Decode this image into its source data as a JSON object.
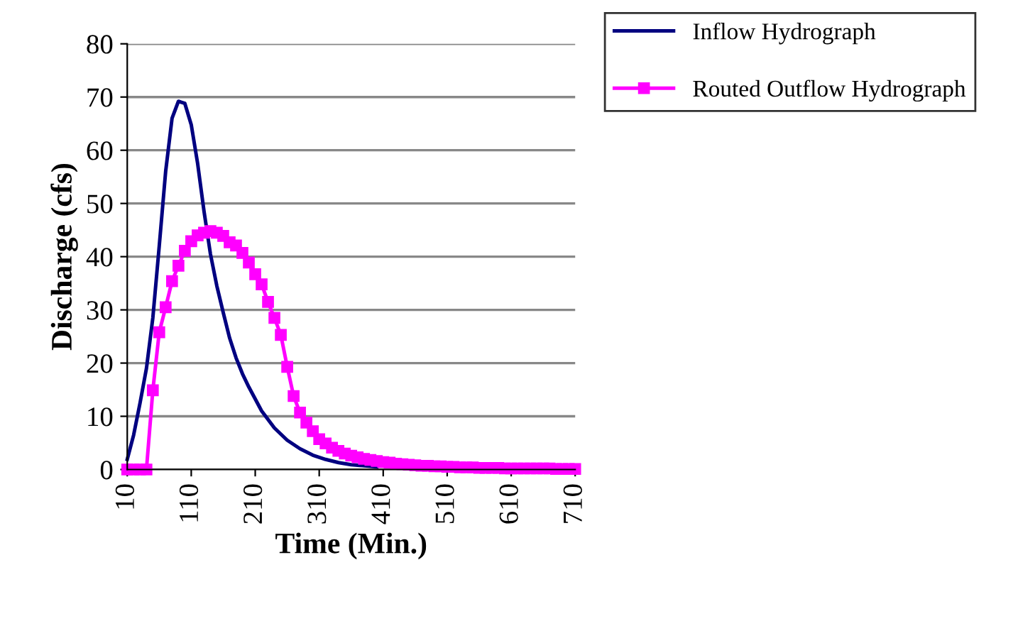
{
  "chart_data": {
    "type": "line",
    "xlabel": "Time (Min.)",
    "ylabel": "Discharge (cfs)",
    "xlim": [
      10,
      710
    ],
    "xticks": [
      10,
      110,
      210,
      310,
      410,
      510,
      610,
      710
    ],
    "ylim": [
      0,
      80
    ],
    "yticks": [
      0,
      10,
      20,
      30,
      40,
      50,
      60,
      70,
      80
    ],
    "grid": "y",
    "legend": "top right",
    "series": [
      {
        "name": "Inflow Hydrograph",
        "color": "#000080",
        "marker": "none",
        "x": [
          10,
          20,
          30,
          40,
          50,
          60,
          70,
          80,
          90,
          100,
          110,
          120,
          130,
          140,
          150,
          160,
          170,
          180,
          190,
          200,
          220,
          240,
          260,
          280,
          300,
          320,
          340,
          360,
          400
        ],
        "values": [
          1.9,
          6.5,
          12.5,
          19,
          28.5,
          42,
          56,
          66,
          69.2,
          68.8,
          64.8,
          57.5,
          48.5,
          40.5,
          34.5,
          29.5,
          24.7,
          21,
          18,
          15.5,
          11,
          7.8,
          5.5,
          3.9,
          2.7,
          1.9,
          1.3,
          0.9,
          0.5
        ]
      },
      {
        "name": "Routed Outflow Hydrograph",
        "color": "#ff00ff",
        "marker": "square",
        "x": [
          10,
          20,
          30,
          40,
          50,
          60,
          70,
          80,
          90,
          100,
          110,
          120,
          130,
          140,
          150,
          160,
          170,
          180,
          190,
          200,
          210,
          220,
          230,
          240,
          250,
          260,
          270,
          280,
          290,
          300,
          310,
          320,
          330,
          340,
          350,
          360,
          370,
          380,
          390,
          400,
          410,
          420,
          430,
          440,
          450,
          460,
          470,
          480,
          490,
          500,
          510,
          520,
          530,
          540,
          550,
          560,
          570,
          580,
          590,
          600,
          610,
          620,
          630,
          640,
          650,
          660,
          670,
          680,
          690,
          700,
          710
        ],
        "values": [
          0,
          0,
          0,
          0,
          14.9,
          25.8,
          30.5,
          35.4,
          38.3,
          41.1,
          42.9,
          44.0,
          44.5,
          44.8,
          44.5,
          43.9,
          42.7,
          42.1,
          40.7,
          38.9,
          36.7,
          34.8,
          31.5,
          28.5,
          25.3,
          19.3,
          13.8,
          10.7,
          8.8,
          7.2,
          5.7,
          4.9,
          4.1,
          3.5,
          3.0,
          2.6,
          2.3,
          2.0,
          1.8,
          1.6,
          1.4,
          1.3,
          1.1,
          1.0,
          0.9,
          0.8,
          0.7,
          0.7,
          0.6,
          0.6,
          0.5,
          0.5,
          0.4,
          0.4,
          0.4,
          0.3,
          0.3,
          0.3,
          0.3,
          0.2,
          0.2,
          0.2,
          0.2,
          0.2,
          0.2,
          0.2,
          0.2,
          0.1,
          0.1,
          0.1,
          0.1
        ]
      }
    ]
  }
}
